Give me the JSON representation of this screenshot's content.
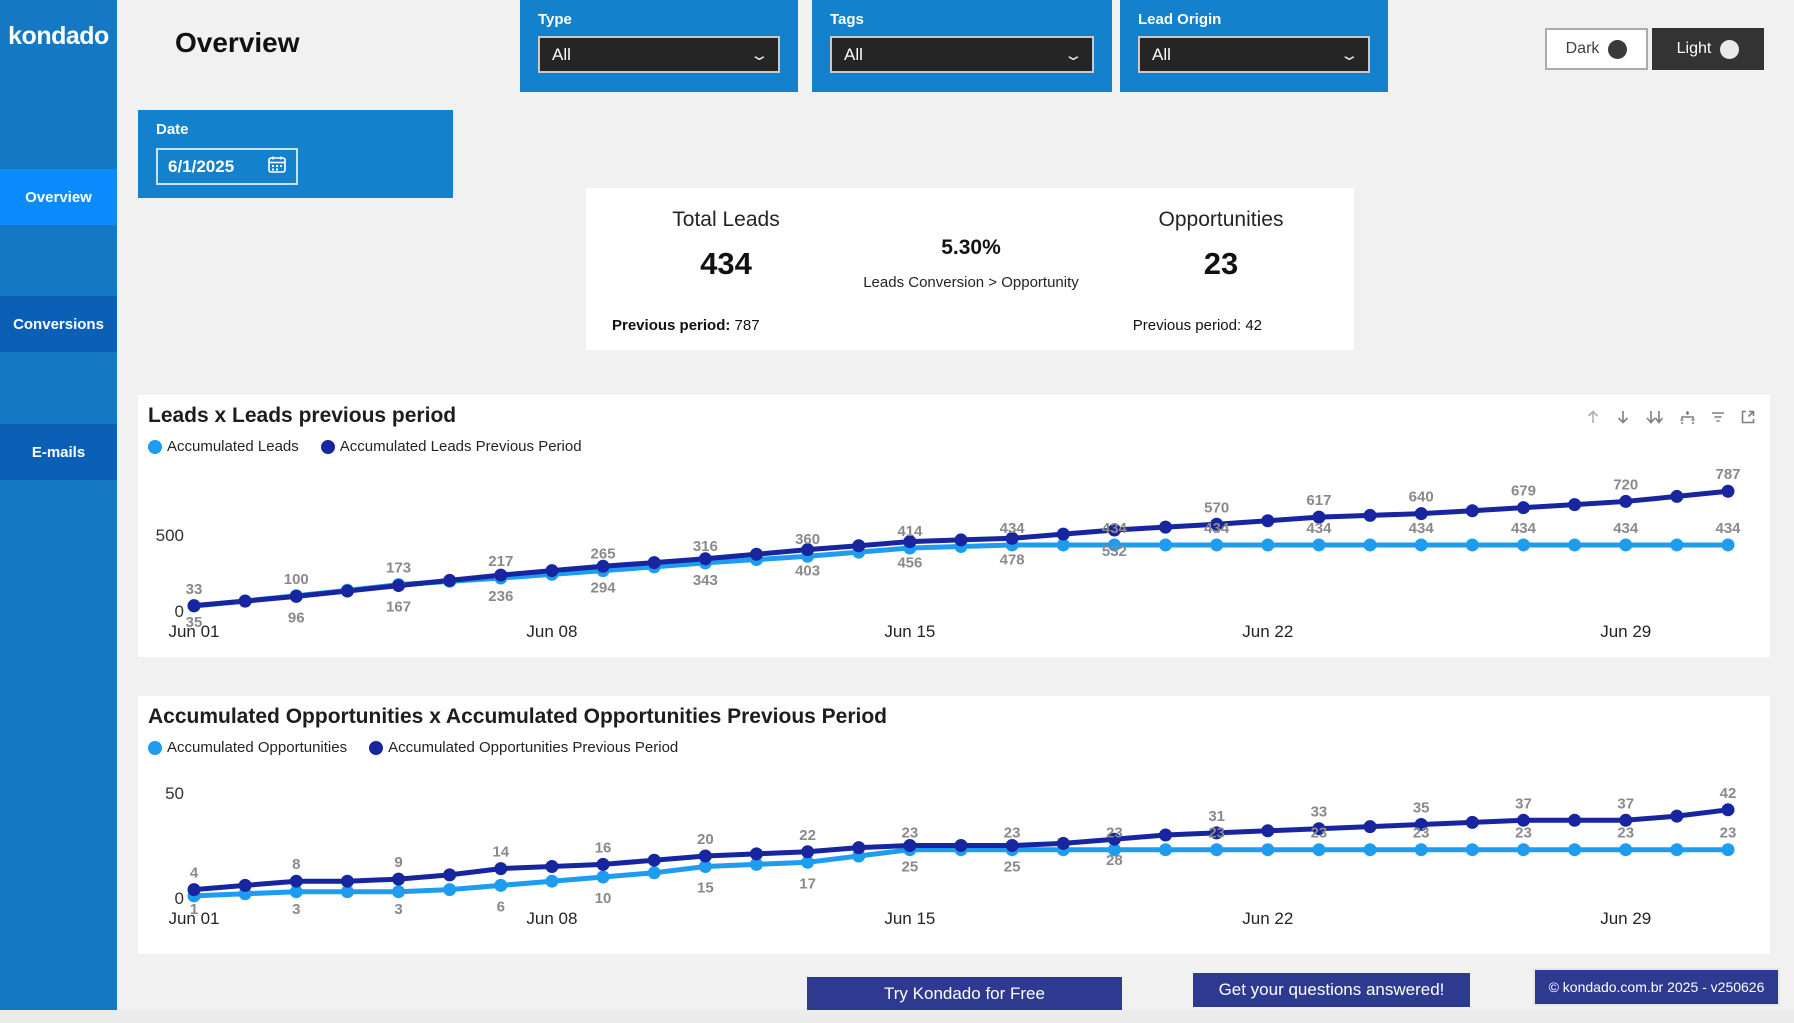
{
  "sidebar": {
    "logo": "kondado",
    "items": [
      {
        "label": "Overview",
        "active": true
      },
      {
        "label": "Conversions",
        "active": false
      },
      {
        "label": "E-mails",
        "active": false
      }
    ]
  },
  "header": {
    "title": "Overview"
  },
  "filters": {
    "type": {
      "label": "Type",
      "value": "All"
    },
    "tags": {
      "label": "Tags",
      "value": "All"
    },
    "lead_origin": {
      "label": "Lead Origin",
      "value": "All"
    },
    "date": {
      "label": "Date",
      "value": "6/1/2025"
    }
  },
  "theme_toggle": {
    "dark_label": "Dark",
    "light_label": "Light"
  },
  "kpi": {
    "total_leads": {
      "title": "Total Leads",
      "value": "434",
      "previous_label": "Previous period:",
      "previous_value": "787"
    },
    "conversion": {
      "value": "5.30%",
      "caption": "Leads Conversion > Opportunity"
    },
    "opportunities": {
      "title": "Opportunities",
      "value": "23",
      "previous_label": "Previous period:",
      "previous_value": "42"
    }
  },
  "visual_header_icons": [
    "drill-up",
    "drill-down",
    "expand-next-level",
    "expand-all",
    "filter",
    "focus-mode"
  ],
  "colors": {
    "accent_light_blue": "#1E9CF0",
    "accent_dark_blue": "#17259E",
    "sidebar_blue": "#1478C4",
    "active_nav_blue": "#0A8CFF",
    "filter_card_blue": "#1381CC",
    "footer_navy": "#2D3A8F",
    "data_label_gray": "#8A8A8A"
  },
  "chart_data": [
    {
      "type": "line",
      "title": "Leads x Leads previous period",
      "ylim": [
        0,
        920
      ],
      "yticks": [
        0,
        500
      ],
      "xticks": [
        {
          "index": 0,
          "label": "Jun 01"
        },
        {
          "index": 7,
          "label": "Jun 08"
        },
        {
          "index": 14,
          "label": "Jun 15"
        },
        {
          "index": 21,
          "label": "Jun 22"
        },
        {
          "index": 28,
          "label": "Jun 29"
        }
      ],
      "label_every": 2,
      "series": [
        {
          "name": "Accumulated Leads",
          "color": "#1E9CF0",
          "values": [
            33,
            66,
            100,
            136,
            173,
            195,
            217,
            241,
            265,
            290,
            316,
            338,
            360,
            387,
            414,
            424,
            434,
            434,
            434,
            434,
            434,
            434,
            434,
            434,
            434,
            434,
            434,
            434,
            434,
            434,
            434
          ]
        },
        {
          "name": "Accumulated Leads Previous Period",
          "color": "#17259E",
          "values": [
            35,
            65,
            96,
            131,
            167,
            201,
            236,
            265,
            294,
            318,
            343,
            373,
            403,
            429,
            456,
            467,
            478,
            505,
            532,
            551,
            570,
            593,
            617,
            628,
            640,
            659,
            679,
            699,
            720,
            753,
            787
          ]
        }
      ]
    },
    {
      "type": "line",
      "title": "Accumulated Opportunities x Accumulated Opportunities Previous Period",
      "ylim": [
        0,
        60
      ],
      "yticks": [
        0,
        50
      ],
      "xticks": [
        {
          "index": 0,
          "label": "Jun 01"
        },
        {
          "index": 7,
          "label": "Jun 08"
        },
        {
          "index": 14,
          "label": "Jun 15"
        },
        {
          "index": 21,
          "label": "Jun 22"
        },
        {
          "index": 28,
          "label": "Jun 29"
        }
      ],
      "label_every": 2,
      "series": [
        {
          "name": "Accumulated Opportunities",
          "color": "#1E9CF0",
          "values": [
            1,
            2,
            3,
            3,
            3,
            4,
            6,
            8,
            10,
            12,
            15,
            16,
            17,
            20,
            23,
            23,
            23,
            23,
            23,
            23,
            23,
            23,
            23,
            23,
            23,
            23,
            23,
            23,
            23,
            23,
            23
          ]
        },
        {
          "name": "Accumulated Opportunities Previous Period",
          "color": "#17259E",
          "values": [
            4,
            6,
            8,
            8,
            9,
            11,
            14,
            15,
            16,
            18,
            20,
            21,
            22,
            24,
            25,
            25,
            25,
            26,
            28,
            30,
            31,
            32,
            33,
            34,
            35,
            36,
            37,
            37,
            37,
            39,
            42
          ]
        }
      ]
    }
  ],
  "footer": {
    "cta_primary": "Try Kondado for Free",
    "cta_secondary": "Get your questions answered!",
    "version": "© kondado.com.br 2025 - v250626"
  }
}
